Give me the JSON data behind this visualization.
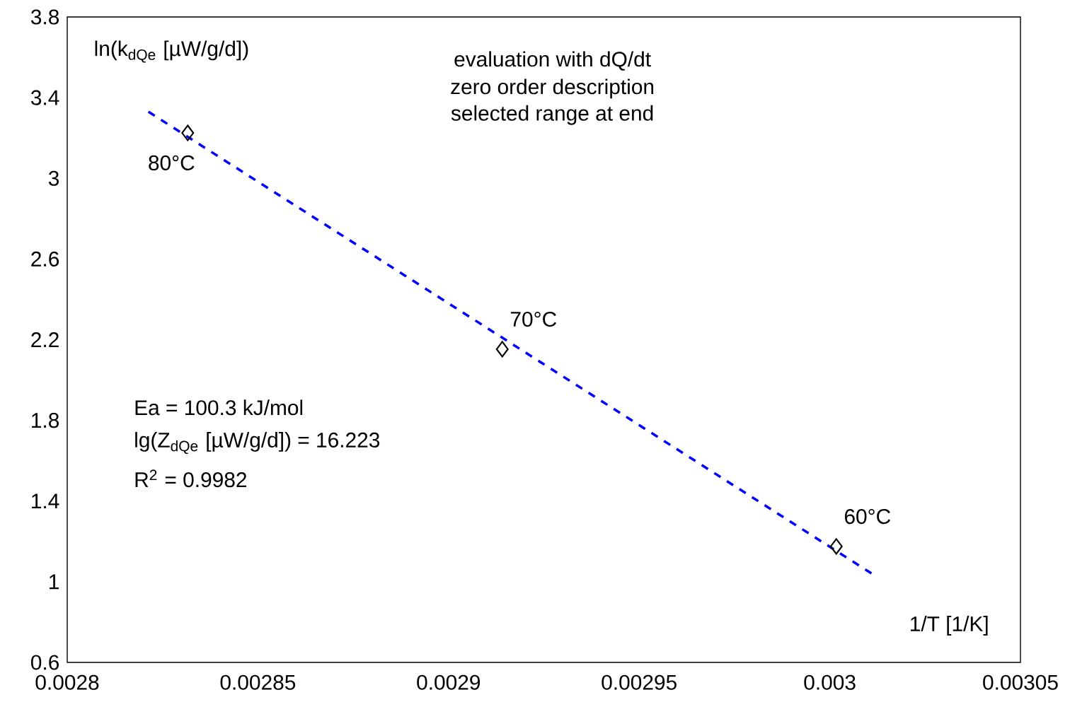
{
  "chart_data": {
    "type": "scatter",
    "xlabel": "1/T [1/K]",
    "ylabel": "ln(k$_{dQe}$ [µW/g/d])",
    "series": [
      {
        "color": "#000000",
        "marker": "diamond",
        "x": [
          0.0028316,
          0.0029141,
          0.0030017
        ],
        "values": [
          3.225,
          2.153,
          1.175
        ]
      },
      {
        "type": "line",
        "color": "#0000ff",
        "line_style": "dashed",
        "marker": "none",
        "x": [
          0.0028213,
          0.0030121
        ],
        "values": [
          3.33,
          1.027
        ]
      }
    ],
    "xlim": [
      0.0028,
      0.00305
    ],
    "ylim": [
      0.6,
      3.8
    ],
    "xticks": [
      0.0028,
      0.00285,
      0.0029,
      0.00295,
      0.003,
      0.00305
    ],
    "yticks": [
      0.6,
      1,
      1.4,
      1.8,
      2.2,
      2.6,
      3,
      3.4,
      3.8
    ],
    "grid": false,
    "annotations": [
      {
        "text": "80°C",
        "x": 0.0028316,
        "y": 3.225
      },
      {
        "text": "70°C",
        "x": 0.0029141,
        "y": 2.153
      },
      {
        "text": "60°C",
        "x": 0.0030017,
        "y": 1.175
      },
      "evaluation with dQ/dt",
      "zero order description",
      "selected range at end",
      "Ea = 100.3 kJ/mol",
      "lg(Z$_{dQe}$ [µW/g/d])  = 16.223",
      "R$^{2}$ = 0.9982"
    ]
  }
}
